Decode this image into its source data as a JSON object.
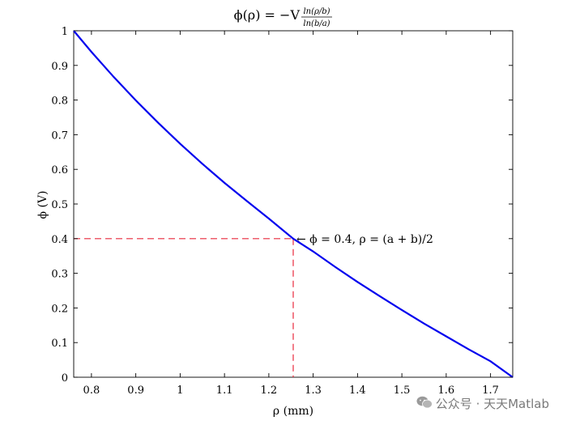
{
  "chart_data": {
    "type": "line",
    "title_parts": {
      "lhs": "ϕ(ρ) = −V",
      "numerator": "ln(ρ/b)",
      "denominator": "ln(b/a)"
    },
    "xlabel": "ρ (mm)",
    "ylabel": "ϕ (V)",
    "xlim": [
      0.76,
      1.75
    ],
    "ylim": [
      0,
      1
    ],
    "x_ticks": [
      0.8,
      0.9,
      1,
      1.1,
      1.2,
      1.3,
      1.4,
      1.5,
      1.6,
      1.7
    ],
    "x_tick_labels": [
      "0.8",
      "0.9",
      "1",
      "1.1",
      "1.2",
      "1.3",
      "1.4",
      "1.5",
      "1.6",
      "1.7"
    ],
    "y_ticks": [
      0,
      0.1,
      0.2,
      0.3,
      0.4,
      0.5,
      0.6,
      0.7,
      0.8,
      0.9,
      1
    ],
    "y_tick_labels": [
      "0",
      "0.1",
      "0.2",
      "0.3",
      "0.4",
      "0.5",
      "0.6",
      "0.7",
      "0.8",
      "0.9",
      "1"
    ],
    "grid": false,
    "series": [
      {
        "color": "#0000ee",
        "style": "solid",
        "x": [
          0.76,
          0.8,
          0.85,
          0.9,
          0.95,
          1.0,
          1.05,
          1.1,
          1.15,
          1.2,
          1.255,
          1.3,
          1.35,
          1.4,
          1.45,
          1.5,
          1.55,
          1.6,
          1.65,
          1.7,
          1.75
        ],
        "y": [
          1.0,
          0.939,
          0.867,
          0.799,
          0.735,
          0.674,
          0.616,
          0.561,
          0.509,
          0.458,
          0.4,
          0.363,
          0.318,
          0.275,
          0.234,
          0.194,
          0.155,
          0.118,
          0.081,
          0.046,
          0.0
        ]
      }
    ],
    "reference_lines": {
      "color": "#e8283c",
      "style": "dashed",
      "x": 1.255,
      "y": 0.4
    },
    "annotation": {
      "text": "← ϕ = 0.4, ρ = (a + b)/2",
      "x": 1.255,
      "y": 0.4
    }
  },
  "watermark": {
    "icon": "wechat-icon",
    "text": "公众号 · 天天Matlab"
  }
}
